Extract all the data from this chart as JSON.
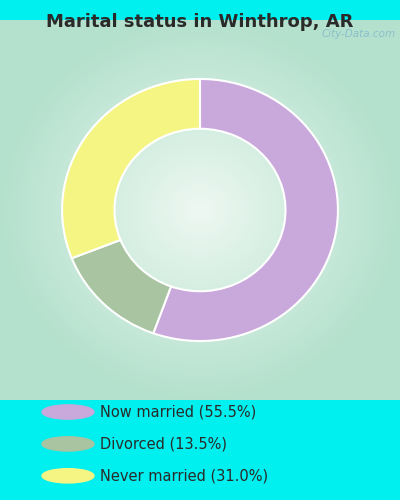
{
  "title": "Marital status in Winthrop, AR",
  "title_color": "#2a2a2a",
  "background_color": "#00efef",
  "chart_bg_from": "#c8e8d8",
  "chart_bg_to": "#eef8f2",
  "slices": [
    55.5,
    13.5,
    31.0
  ],
  "colors": [
    "#c9a8dc",
    "#a8c4a0",
    "#f5f584"
  ],
  "legend_labels": [
    "Now married (55.5%)",
    "Divorced (13.5%)",
    "Never married (31.0%)"
  ],
  "donut_outer_r": 1.0,
  "donut_inner_r": 0.62,
  "start_angle": 90,
  "watermark": "City-Data.com",
  "watermark_color": "#88bbcc",
  "title_fontsize": 13,
  "legend_fontsize": 10.5
}
